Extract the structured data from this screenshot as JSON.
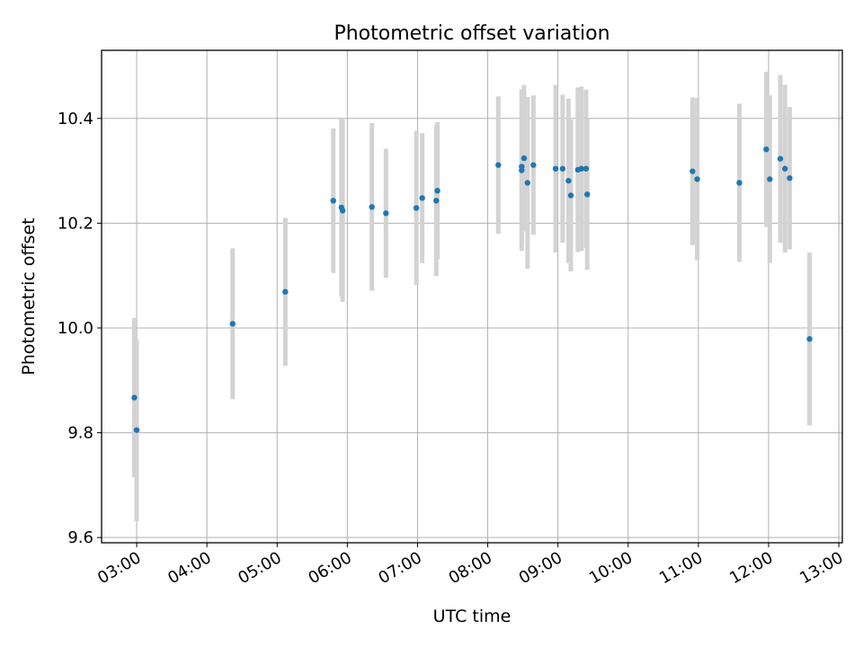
{
  "chart_data": {
    "type": "scatter",
    "title": "Photometric offset variation",
    "xlabel": "UTC time",
    "ylabel": "Photometric offset",
    "xlim": [
      "02:30",
      "13:03"
    ],
    "ylim": [
      9.59,
      10.53
    ],
    "grid": true,
    "x_ticks": [
      "03:00",
      "04:00",
      "05:00",
      "06:00",
      "07:00",
      "08:00",
      "09:00",
      "10:00",
      "11:00",
      "12:00",
      "13:00"
    ],
    "y_ticks": [
      9.6,
      9.8,
      10.0,
      10.2,
      10.4
    ],
    "y_tick_labels": [
      "9.6",
      "9.8",
      "10.0",
      "10.2",
      "10.4"
    ],
    "point_color": "#1f77b4",
    "errorbar_color": "#d3d3d3",
    "points": [
      {
        "x": "02:58",
        "y": 9.867,
        "err": 0.152
      },
      {
        "x": "03:00",
        "y": 9.805,
        "err": 0.174
      },
      {
        "x": "04:22",
        "y": 10.008,
        "err": 0.144
      },
      {
        "x": "05:07",
        "y": 10.069,
        "err": 0.141
      },
      {
        "x": "05:48",
        "y": 10.243,
        "err": 0.138
      },
      {
        "x": "05:55",
        "y": 10.23,
        "err": 0.17
      },
      {
        "x": "05:56",
        "y": 10.224,
        "err": 0.174
      },
      {
        "x": "06:21",
        "y": 10.231,
        "err": 0.16
      },
      {
        "x": "06:33",
        "y": 10.219,
        "err": 0.123
      },
      {
        "x": "06:59",
        "y": 10.229,
        "err": 0.147
      },
      {
        "x": "07:04",
        "y": 10.248,
        "err": 0.124
      },
      {
        "x": "07:16",
        "y": 10.243,
        "err": 0.144
      },
      {
        "x": "07:17",
        "y": 10.262,
        "err": 0.131
      },
      {
        "x": "08:09",
        "y": 10.311,
        "err": 0.131
      },
      {
        "x": "08:29",
        "y": 10.308,
        "err": 0.147
      },
      {
        "x": "08:29",
        "y": 10.301,
        "err": 0.154
      },
      {
        "x": "08:31",
        "y": 10.324,
        "err": 0.14
      },
      {
        "x": "08:34",
        "y": 10.277,
        "err": 0.164
      },
      {
        "x": "08:39",
        "y": 10.311,
        "err": 0.133
      },
      {
        "x": "08:58",
        "y": 10.304,
        "err": 0.16
      },
      {
        "x": "09:04",
        "y": 10.304,
        "err": 0.141
      },
      {
        "x": "09:09",
        "y": 10.281,
        "err": 0.157
      },
      {
        "x": "09:11",
        "y": 10.253,
        "err": 0.145
      },
      {
        "x": "09:17",
        "y": 10.302,
        "err": 0.157
      },
      {
        "x": "09:20",
        "y": 10.304,
        "err": 0.157
      },
      {
        "x": "09:24",
        "y": 10.304,
        "err": 0.151
      },
      {
        "x": "09:25",
        "y": 10.255,
        "err": 0.144
      },
      {
        "x": "10:55",
        "y": 10.299,
        "err": 0.141
      },
      {
        "x": "10:59",
        "y": 10.284,
        "err": 0.155
      },
      {
        "x": "11:35",
        "y": 10.277,
        "err": 0.151
      },
      {
        "x": "11:58",
        "y": 10.341,
        "err": 0.148
      },
      {
        "x": "12:01",
        "y": 10.284,
        "err": 0.16
      },
      {
        "x": "12:10",
        "y": 10.323,
        "err": 0.16
      },
      {
        "x": "12:14",
        "y": 10.304,
        "err": 0.16
      },
      {
        "x": "12:18",
        "y": 10.286,
        "err": 0.136
      },
      {
        "x": "12:35",
        "y": 9.979,
        "err": 0.165
      }
    ]
  }
}
